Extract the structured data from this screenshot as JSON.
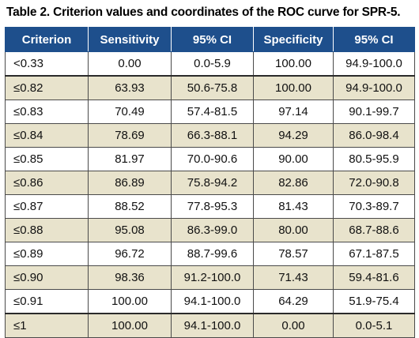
{
  "caption": "Table 2. Criterion values and coordinates of the ROC curve for SPR-5.",
  "colors": {
    "header_bg": "#1e4f8c",
    "header_text": "#ffffff",
    "row_shade": "#e8e3cc",
    "row_light": "#ffffff",
    "border": "#4a4a4a"
  },
  "table": {
    "headers": [
      "Criterion",
      "Sensitivity",
      "95% CI",
      "Specificity",
      "95% CI"
    ],
    "rows": [
      [
        "<0.33",
        "0.00",
        "0.0-5.9",
        "100.00",
        "94.9-100.0"
      ],
      [
        "≤0.82",
        "63.93",
        "50.6-75.8",
        "100.00",
        "94.9-100.0"
      ],
      [
        "≤0.83",
        "70.49",
        "57.4-81.5",
        "97.14",
        "90.1-99.7"
      ],
      [
        "≤0.84",
        "78.69",
        "66.3-88.1",
        "94.29",
        "86.0-98.4"
      ],
      [
        "≤0.85",
        "81.97",
        "70.0-90.6",
        "90.00",
        "80.5-95.9"
      ],
      [
        "≤0.86",
        "86.89",
        "75.8-94.2",
        "82.86",
        "72.0-90.8"
      ],
      [
        "≤0.87",
        "88.52",
        "77.8-95.3",
        "81.43",
        "70.3-89.7"
      ],
      [
        "≤0.88",
        "95.08",
        "86.3-99.0",
        "80.00",
        "68.7-88.6"
      ],
      [
        "≤0.89",
        "96.72",
        "88.7-99.6",
        "78.57",
        "67.1-87.5"
      ],
      [
        "≤0.90",
        "98.36",
        "91.2-100.0",
        "71.43",
        "59.4-81.6"
      ],
      [
        "≤0.91",
        "100.00",
        "94.1-100.0",
        "64.29",
        "51.9-75.4"
      ],
      [
        "≤1",
        "100.00",
        "94.1-100.0",
        "0.00",
        "0.0-5.1"
      ]
    ]
  }
}
